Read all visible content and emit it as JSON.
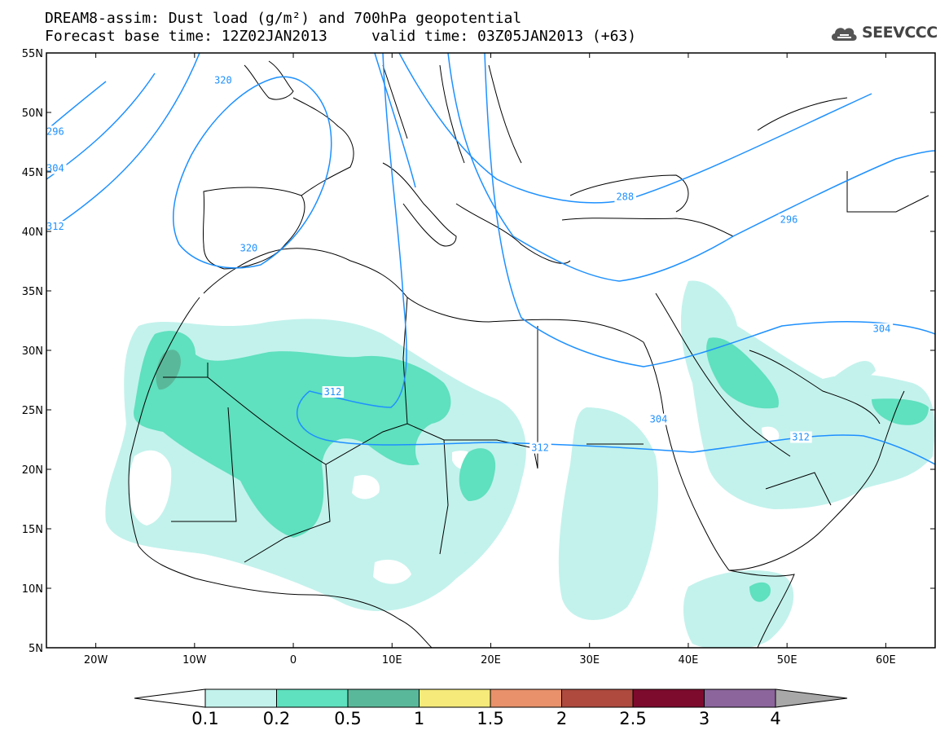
{
  "header": {
    "title_line1": "DREAM8-assim: Dust load (g/m²) and 700hPa geopotential",
    "title_line2": "Forecast base time: 12Z02JAN2013     valid time: 03Z05JAN2013 (+63)"
  },
  "logo": {
    "text": "SEEVCCC",
    "icon": "cloud-icon"
  },
  "map": {
    "lon_range": [
      -25,
      65
    ],
    "lat_range": [
      5,
      55
    ],
    "x_ticks": [
      "20W",
      "10W",
      "0",
      "10E",
      "20E",
      "30E",
      "40E",
      "50E",
      "60E"
    ],
    "x_tick_values": [
      -20,
      -10,
      0,
      10,
      20,
      30,
      40,
      50,
      60
    ],
    "y_ticks": [
      "55N",
      "50N",
      "45N",
      "40N",
      "35N",
      "30N",
      "25N",
      "20N",
      "15N",
      "10N",
      "5N"
    ],
    "y_tick_values": [
      55,
      50,
      45,
      40,
      35,
      30,
      25,
      20,
      15,
      10,
      5
    ],
    "contour_color": "#1e90ff",
    "contour_labels": [
      {
        "text": "320",
        "lon": -8,
        "lat": 52.5
      },
      {
        "text": "320",
        "lon": -5.4,
        "lat": 38.4
      },
      {
        "text": "296",
        "lon": -25,
        "lat": 48.2
      },
      {
        "text": "304",
        "lon": -25,
        "lat": 45.1
      },
      {
        "text": "312",
        "lon": -25,
        "lat": 40.2
      },
      {
        "text": "288",
        "lon": 32.7,
        "lat": 42.7
      },
      {
        "text": "296",
        "lon": 49.3,
        "lat": 40.8
      },
      {
        "text": "304",
        "lon": 58.7,
        "lat": 31.6
      },
      {
        "text": "304",
        "lon": 36.1,
        "lat": 24.0
      },
      {
        "text": "312",
        "lon": 3.1,
        "lat": 26.3
      },
      {
        "text": "312",
        "lon": 24.1,
        "lat": 21.6
      },
      {
        "text": "312",
        "lon": 50.5,
        "lat": 22.5
      }
    ]
  },
  "colorbar": {
    "labels": [
      "0.1",
      "0.2",
      "0.5",
      "1",
      "1.5",
      "2",
      "2.5",
      "3",
      "4"
    ],
    "colors": [
      "#c3f2ec",
      "#5fe0be",
      "#5ab89a",
      "#f5ea7a",
      "#e8916a",
      "#ae4a3e",
      "#7d0b2e",
      "#8c659c"
    ],
    "under_color": "#ffffff",
    "over_color": "#a8a8a8"
  }
}
